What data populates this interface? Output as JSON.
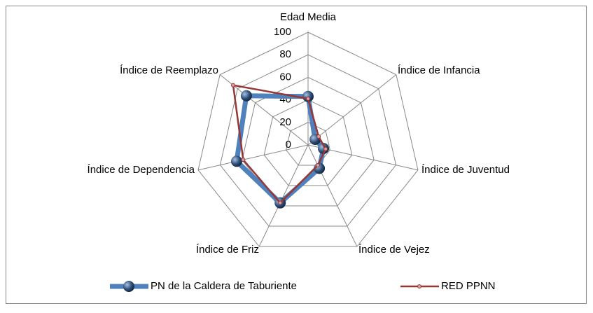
{
  "chart_data": {
    "type": "radar",
    "categories": [
      "Edad Media",
      "Índice de Infancia",
      "Índice de Juventud",
      "Índice de Vejez",
      "Índice de Friz",
      "Índice de Dependencia",
      "Índice de Reemplazo"
    ],
    "series": [
      {
        "name": "PN de la Caldera de Taburiente",
        "color": "#4f81bd",
        "values": [
          43,
          8,
          14,
          23,
          57,
          65,
          70
        ]
      },
      {
        "name": "RED PPNN",
        "color": "#953735",
        "values": [
          41,
          12,
          16,
          20,
          57,
          59,
          85
        ]
      }
    ],
    "ylim": [
      0,
      100
    ],
    "yticks": [
      0,
      20,
      40,
      60,
      80,
      100
    ],
    "grid": true,
    "legend": "bottom"
  }
}
